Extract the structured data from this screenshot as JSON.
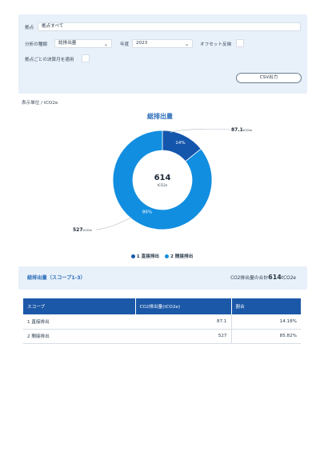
{
  "filters": {
    "base_label": "拠点",
    "base_value": "拠点すべて",
    "analysis_label": "分析の種類",
    "analysis_value": "総排出量",
    "year_label": "年度",
    "year_value": "2023",
    "offset_label": "オフセット反映",
    "fiscal_label": "拠点ごとの決算月を適用",
    "csv_button": "CSV出力"
  },
  "unit_label": "表示単位 / tCO2e",
  "chart_data": {
    "type": "pie",
    "title": "総排出量",
    "categories": [
      "1 直接排出",
      "2 間接排出"
    ],
    "values": [
      87.1,
      527
    ],
    "center_value": "614",
    "center_unit": "tCO2e",
    "percent_labels": [
      "14%",
      "86%"
    ],
    "value_labels": [
      "87.1",
      "527"
    ],
    "value_unit": "tCO2e",
    "colors": [
      "#1556ad",
      "#118ee0"
    ],
    "legend": "bottom"
  },
  "legend": {
    "item1": "1 直接排出",
    "item2": "2 間接排出",
    "color1": "#1556ad",
    "color2": "#118ee0"
  },
  "summary": {
    "title": "総排出量（スコープ1-3）",
    "total_prefix": "CO2排出量の合計",
    "total_value": "614",
    "total_unit": "tCO2e"
  },
  "table": {
    "headers": [
      "スコープ",
      "CO2排出量(tCO2e)",
      "割合"
    ],
    "rows": [
      {
        "scope": "1 直接排出",
        "value": "87.1",
        "ratio": "14.18%"
      },
      {
        "scope": "2 間接排出",
        "value": "527",
        "ratio": "85.82%"
      }
    ]
  }
}
